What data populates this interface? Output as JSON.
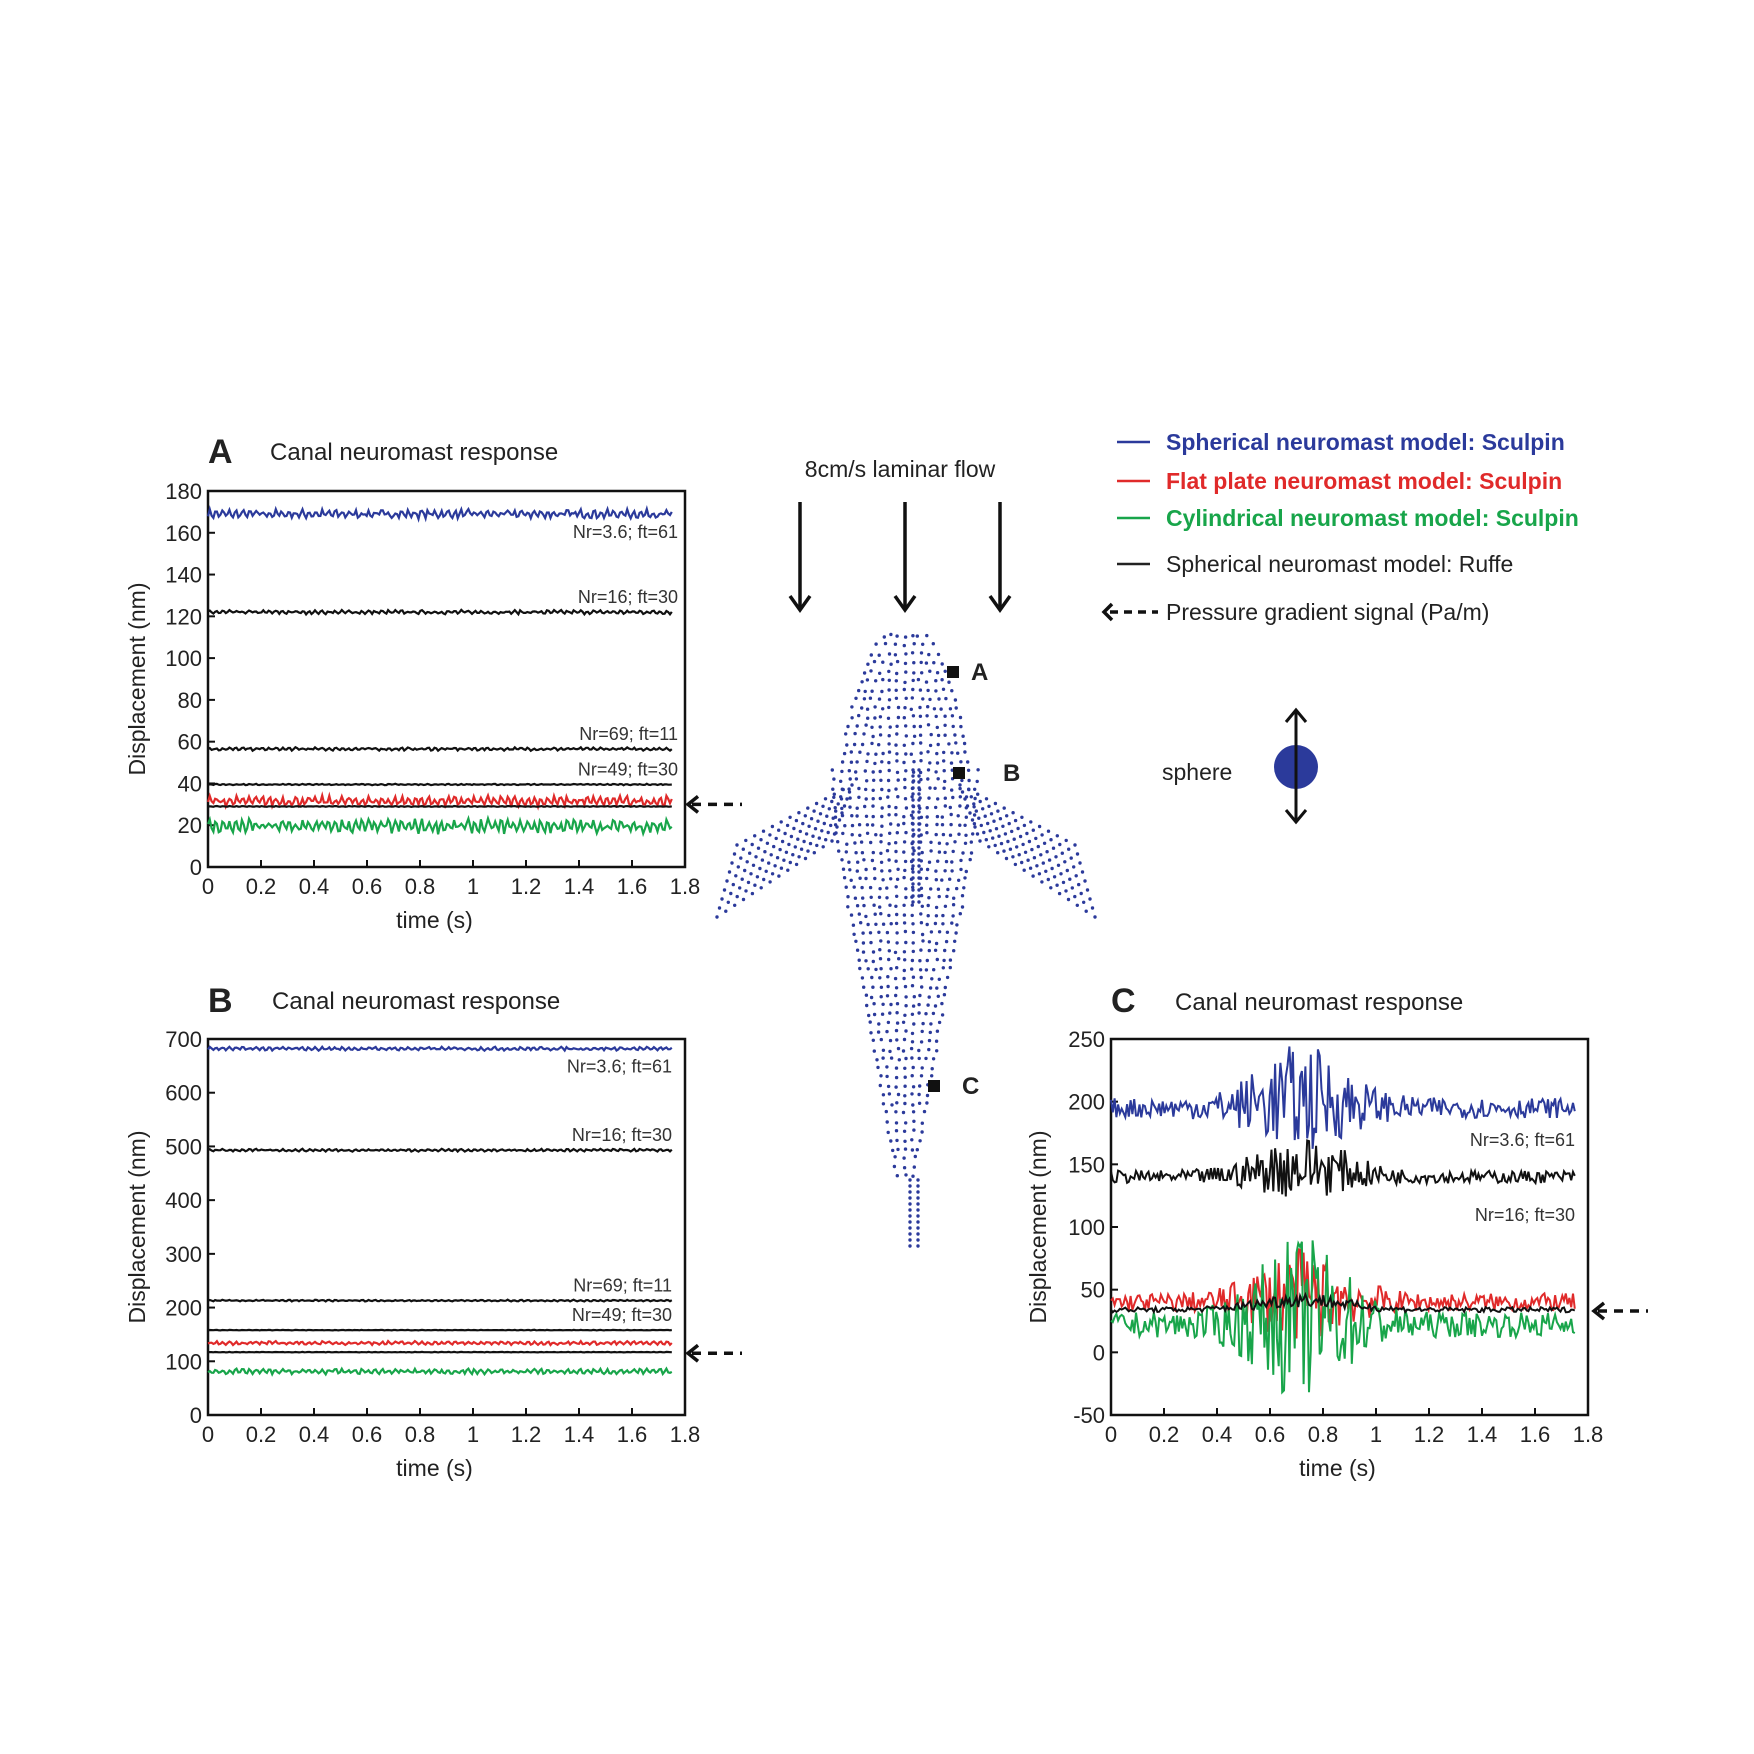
{
  "chart_data": [
    {
      "type": "line",
      "panel": "A",
      "title": "Canal neuromast response",
      "xlabel": "time (s)",
      "ylabel": "Displacement (nm)",
      "xlim": [
        0,
        1.8
      ],
      "ylim": [
        0,
        180
      ],
      "x_ticks": [
        "0",
        "0.2",
        "0.4",
        "0.6",
        "0.8",
        "1",
        "1.2",
        "1.4",
        "1.6",
        "1.8"
      ],
      "y_ticks": [
        "0",
        "20",
        "40",
        "60",
        "80",
        "100",
        "120",
        "140",
        "160",
        "180"
      ],
      "series": [
        {
          "color": "#2b3a9b",
          "mean": 169,
          "amp": 2.2,
          "label": "Nr=3.6; ft=61"
        },
        {
          "color": "#111111",
          "mean": 122,
          "amp": 1.0,
          "label": "Nr=16; ft=30"
        },
        {
          "color": "#111111",
          "mean": 56.5,
          "amp": 0.8,
          "label": "Nr=69; ft=11"
        },
        {
          "color": "#111111",
          "mean": 39.5,
          "amp": 0.3,
          "label": "Nr=49; ft=30"
        },
        {
          "color": "#e02a2a",
          "mean": 31.5,
          "amp": 2.5
        },
        {
          "color": "#111111",
          "mean": 29,
          "amp": 0.2
        },
        {
          "color": "#18a54a",
          "mean": 19.5,
          "amp": 3.5
        }
      ],
      "pressure_gradient_level": 30
    },
    {
      "type": "line",
      "panel": "B",
      "title": "Canal neuromast response",
      "xlabel": "time (s)",
      "ylabel": "Displacement (nm)",
      "xlim": [
        0,
        1.8
      ],
      "ylim": [
        0,
        700
      ],
      "x_ticks": [
        "0",
        "0.2",
        "0.4",
        "0.6",
        "0.8",
        "1",
        "1.2",
        "1.4",
        "1.6",
        "1.8"
      ],
      "y_ticks": [
        "0",
        "100",
        "200",
        "300",
        "400",
        "500",
        "600",
        "700"
      ],
      "series": [
        {
          "color": "#2b3a9b",
          "mean": 682,
          "amp": 3.5,
          "label": "Nr=3.6; ft=61"
        },
        {
          "color": "#111111",
          "mean": 493,
          "amp": 2.5,
          "label": "Nr=16; ft=30"
        },
        {
          "color": "#111111",
          "mean": 213,
          "amp": 1.5,
          "label": "Nr=69; ft=11"
        },
        {
          "color": "#111111",
          "mean": 158,
          "amp": 0.5,
          "label": "Nr=49; ft=30"
        },
        {
          "color": "#e02a2a",
          "mean": 134,
          "amp": 3.5
        },
        {
          "color": "#111111",
          "mean": 117,
          "amp": 0.5
        },
        {
          "color": "#18a54a",
          "mean": 81,
          "amp": 5
        }
      ],
      "pressure_gradient_level": 115
    },
    {
      "type": "line",
      "panel": "C",
      "title": "Canal neuromast response",
      "xlabel": "time (s)",
      "ylabel": "Displacement (nm)",
      "xlim": [
        0,
        1.8
      ],
      "ylim": [
        -50,
        250
      ],
      "x_ticks": [
        "0",
        "0.2",
        "0.4",
        "0.6",
        "0.8",
        "1",
        "1.2",
        "1.4",
        "1.6",
        "1.8"
      ],
      "y_ticks": [
        "-50",
        "0",
        "50",
        "100",
        "150",
        "200",
        "250"
      ],
      "series": [
        {
          "color": "#2b3a9b",
          "mean": 195,
          "amp": 8,
          "burst": 35,
          "label": "Nr=3.6; ft=61"
        },
        {
          "color": "#111111",
          "mean": 140,
          "amp": 5,
          "burst": 20,
          "label": "Nr=16; ft=30"
        },
        {
          "color": "#e02a2a",
          "mean": 40,
          "amp": 7,
          "burst": 30
        },
        {
          "color": "#18a54a",
          "mean": 22,
          "amp": 10,
          "burst": 55
        },
        {
          "color": "#111111",
          "mean": 34,
          "amp": 2,
          "burst": 4
        }
      ],
      "pressure_gradient_level": 33
    }
  ],
  "legend": [
    {
      "text": "Spherical neuromast model: Sculpin",
      "color": "#2b3a9b",
      "bold": true
    },
    {
      "text": "Flat plate neuromast model: Sculpin",
      "color": "#e02a2a",
      "bold": true
    },
    {
      "text": "Cylindrical neuromast model: Sculpin",
      "color": "#18a54a",
      "bold": true
    },
    {
      "text": "Spherical neuromast model: Ruffe",
      "color": "#222222",
      "bold": false
    },
    {
      "text": "Pressure gradient signal (Pa/m)",
      "color": "#222222",
      "bold": false
    }
  ],
  "figure": {
    "flow_label": "8cm/s laminar flow",
    "sphere_label": "sphere",
    "marker_labels": [
      "A",
      "B",
      "C"
    ],
    "fish_color": "#2b3a9b"
  }
}
